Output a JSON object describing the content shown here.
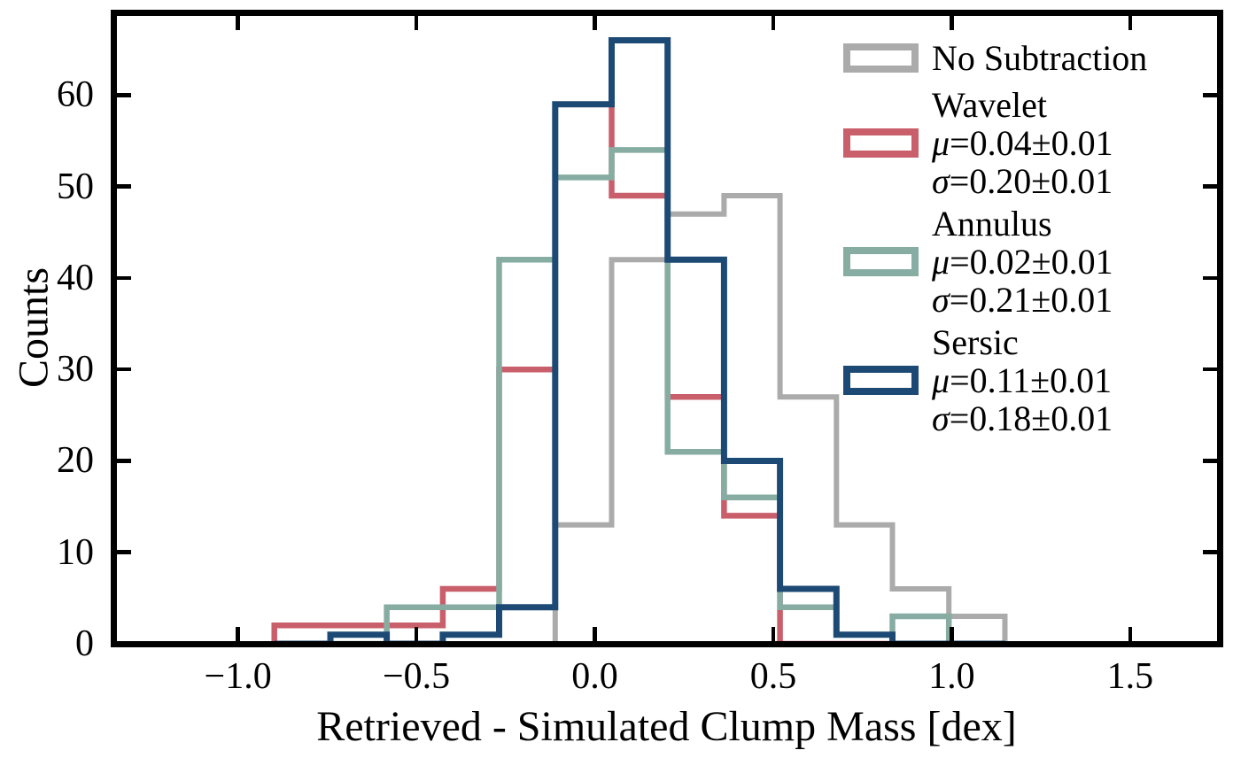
{
  "legend": {
    "entries": [
      {
        "label": "No Subtraction",
        "color": "#ababab"
      },
      {
        "label": "Wavelet",
        "color": "#c95f6b",
        "mu_symbol": "μ",
        "mu_value": "=0.04±0.01",
        "sigma_symbol": "σ",
        "sigma_value": "=0.20±0.01"
      },
      {
        "label": "Annulus",
        "color": "#87ada2",
        "mu_symbol": "μ",
        "mu_value": "=0.02±0.01",
        "sigma_symbol": "σ",
        "sigma_value": "=0.21±0.01"
      },
      {
        "label": "Sersic",
        "color": "#1d4a74",
        "mu_symbol": "μ",
        "mu_value": "=0.11±0.01",
        "sigma_symbol": "σ",
        "sigma_value": "=0.18±0.01"
      }
    ]
  },
  "chart_data": {
    "type": "step-histogram",
    "title": "",
    "xlabel": "Retrieved - Simulated Clump Mass [dex]",
    "ylabel": "Counts",
    "xlim": [
      -1.349,
      1.751
    ],
    "ylim": [
      0,
      69.05
    ],
    "xticks": [
      -1.0,
      -0.5,
      0.0,
      0.5,
      1.0,
      1.5
    ],
    "xtick_labels": [
      "−1.0",
      "−0.5",
      "0.0",
      "0.5",
      "1.0",
      "1.5"
    ],
    "yticks": [
      0,
      10,
      20,
      30,
      40,
      50,
      60
    ],
    "ytick_labels": [
      "0",
      "10",
      "20",
      "30",
      "40",
      "50",
      "60"
    ],
    "grid": false,
    "legend_position": "upper right",
    "bin_edges": [
      -0.898,
      -0.741,
      -0.583,
      -0.426,
      -0.268,
      -0.111,
      0.047,
      0.204,
      0.362,
      0.519,
      0.677,
      0.834,
      0.992,
      1.149
    ],
    "series": [
      {
        "name": "No Subtraction",
        "color": "#ababab",
        "lw": 6,
        "counts": [
          0,
          0,
          0,
          0,
          0,
          13,
          42,
          47,
          49,
          27,
          13,
          6,
          3
        ]
      },
      {
        "name": "Wavelet",
        "color": "#c95f6b",
        "lw": 6.5,
        "mu": "0.04±0.01",
        "sigma": "0.20±0.01",
        "counts": [
          2,
          2,
          2,
          6,
          30,
          59,
          49,
          27,
          14,
          0,
          0,
          0,
          0
        ]
      },
      {
        "name": "Annulus",
        "color": "#87ada2",
        "lw": 6.5,
        "mu": "0.02±0.01",
        "sigma": "0.21±0.01",
        "counts": [
          0,
          0,
          4,
          4,
          42,
          51,
          54,
          21,
          16,
          4,
          1,
          3,
          0
        ]
      },
      {
        "name": "Sersic",
        "color": "#1d4a74",
        "lw": 7,
        "mu": "0.11±0.01",
        "sigma": "0.18±0.01",
        "counts": [
          0,
          1,
          0,
          1,
          4,
          59,
          66,
          42,
          20,
          6,
          1,
          0,
          0
        ]
      }
    ]
  }
}
